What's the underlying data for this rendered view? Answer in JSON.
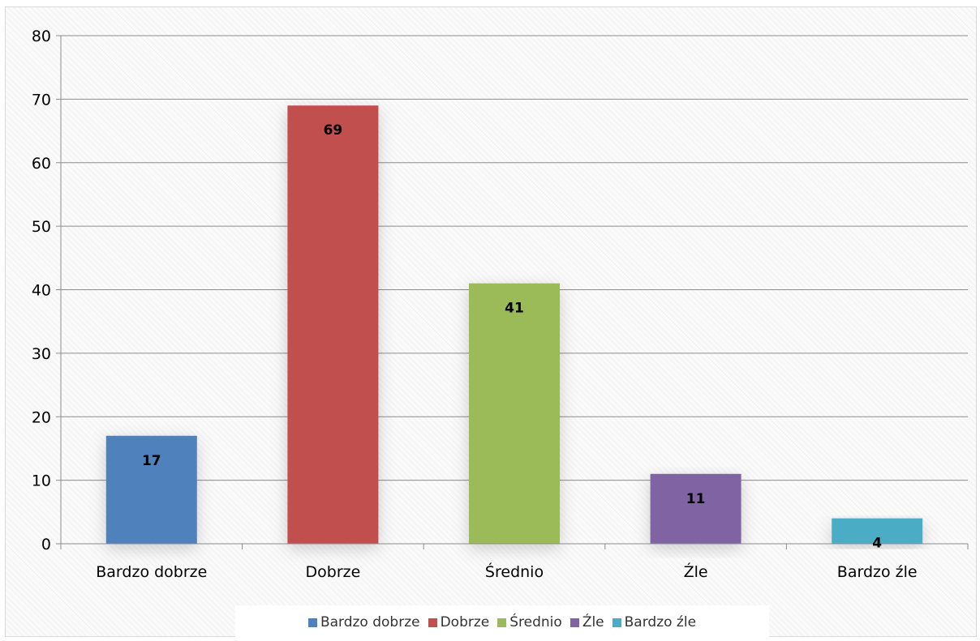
{
  "chart_data": {
    "type": "bar",
    "categories": [
      "Bardzo dobrze",
      "Dobrze",
      "Średnio",
      "Źle",
      "Bardzo źle"
    ],
    "values": [
      17,
      69,
      41,
      11,
      4
    ],
    "data_labels": [
      "17",
      "69",
      "41",
      "11",
      "4"
    ],
    "colors": [
      "#4f81bd",
      "#c0504d",
      "#9bbb59",
      "#8064a2",
      "#4bacc6"
    ],
    "ylim": [
      0,
      80
    ],
    "yticks": [
      0,
      10,
      20,
      30,
      40,
      50,
      60,
      70,
      80
    ],
    "ytick_labels": [
      "0",
      "10",
      "20",
      "30",
      "40",
      "50",
      "60",
      "70",
      "80"
    ],
    "grid": true,
    "legend_position": "bottom",
    "title": "",
    "xlabel": "",
    "ylabel": ""
  },
  "legend": {
    "items": [
      {
        "label": "Bardzo dobrze",
        "color": "#4f81bd"
      },
      {
        "label": "Dobrze",
        "color": "#c0504d"
      },
      {
        "label": "Średnio",
        "color": "#9bbb59"
      },
      {
        "label": "Źle",
        "color": "#8064a2"
      },
      {
        "label": "Bardzo źle",
        "color": "#4bacc6"
      }
    ]
  }
}
